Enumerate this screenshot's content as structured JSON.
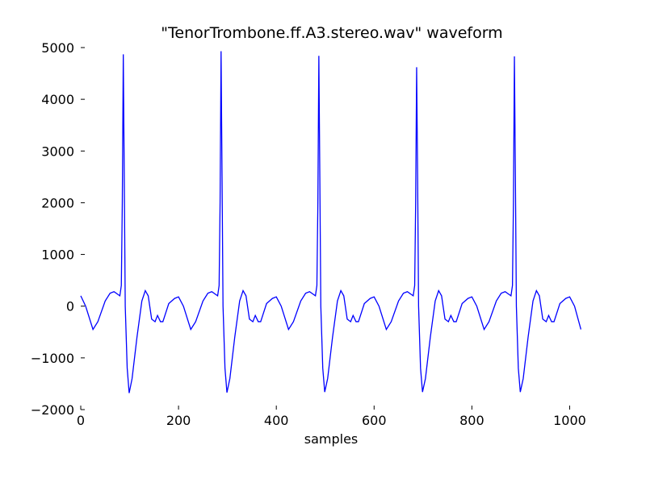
{
  "chart_data": {
    "type": "line",
    "title": "\"TenorTrombone.ff.A3.stereo.wav\" waveform",
    "x_label": "samples",
    "x": [
      0,
      10,
      25,
      35,
      50,
      60,
      68,
      80,
      83,
      85,
      87,
      89,
      91,
      95,
      99,
      105,
      115,
      125,
      132,
      138,
      145,
      152,
      157,
      163,
      168,
      180,
      192,
      200,
      210,
      225,
      235,
      250,
      260,
      268,
      280,
      283,
      285,
      287,
      289,
      291,
      295,
      299,
      305,
      315,
      325,
      332,
      338,
      345,
      352,
      357,
      363,
      368,
      380,
      392,
      400,
      410,
      425,
      435,
      450,
      460,
      468,
      480,
      483,
      485,
      487,
      489,
      491,
      495,
      499,
      505,
      515,
      525,
      532,
      538,
      545,
      552,
      557,
      563,
      568,
      580,
      592,
      600,
      610,
      625,
      635,
      650,
      660,
      668,
      680,
      683,
      685,
      687,
      689,
      691,
      695,
      699,
      705,
      715,
      725,
      732,
      738,
      745,
      752,
      757,
      763,
      768,
      780,
      792,
      800,
      810,
      825,
      835,
      850,
      860,
      868,
      880,
      883,
      885,
      887,
      889,
      891,
      895,
      899,
      905,
      915,
      925,
      932,
      938,
      945,
      952,
      957,
      963,
      968,
      980,
      992,
      1000,
      1010,
      1023
    ],
    "series": [
      {
        "name": "waveform",
        "color": "#0000ff",
        "values": [
          200,
          0,
          -450,
          -300,
          100,
          250,
          280,
          200,
          400,
          2000,
          4870,
          2500,
          0,
          -1200,
          -1680,
          -1400,
          -600,
          100,
          300,
          200,
          -250,
          -300,
          -180,
          -300,
          -300,
          50,
          150,
          180,
          0,
          -450,
          -300,
          100,
          250,
          280,
          200,
          400,
          2000,
          4930,
          2500,
          0,
          -1200,
          -1670,
          -1400,
          -600,
          100,
          300,
          200,
          -250,
          -300,
          -180,
          -300,
          -300,
          50,
          150,
          180,
          0,
          -450,
          -300,
          100,
          250,
          280,
          200,
          400,
          2000,
          4840,
          2500,
          0,
          -1200,
          -1660,
          -1400,
          -600,
          100,
          300,
          200,
          -250,
          -300,
          -180,
          -300,
          -300,
          50,
          150,
          180,
          0,
          -450,
          -300,
          100,
          250,
          280,
          200,
          400,
          2000,
          4620,
          2500,
          0,
          -1200,
          -1660,
          -1400,
          -600,
          100,
          300,
          200,
          -250,
          -300,
          -180,
          -300,
          -300,
          50,
          150,
          180,
          0,
          -450,
          -300,
          100,
          250,
          280,
          200,
          400,
          2000,
          4830,
          2500,
          0,
          -1200,
          -1660,
          -1400,
          -600,
          100,
          300,
          200,
          -250,
          -300,
          -180,
          -300,
          -300,
          50,
          150,
          180,
          0,
          -450
        ]
      }
    ],
    "xlim": [
      0,
      1024
    ],
    "ylim": [
      -2000,
      5000
    ],
    "xticks": [
      0,
      200,
      400,
      600,
      800,
      1000
    ],
    "yticks": [
      {
        "value": -2000,
        "label": "−2000"
      },
      {
        "value": -1000,
        "label": "−1000"
      },
      0,
      1000,
      2000,
      3000,
      4000,
      5000
    ]
  }
}
